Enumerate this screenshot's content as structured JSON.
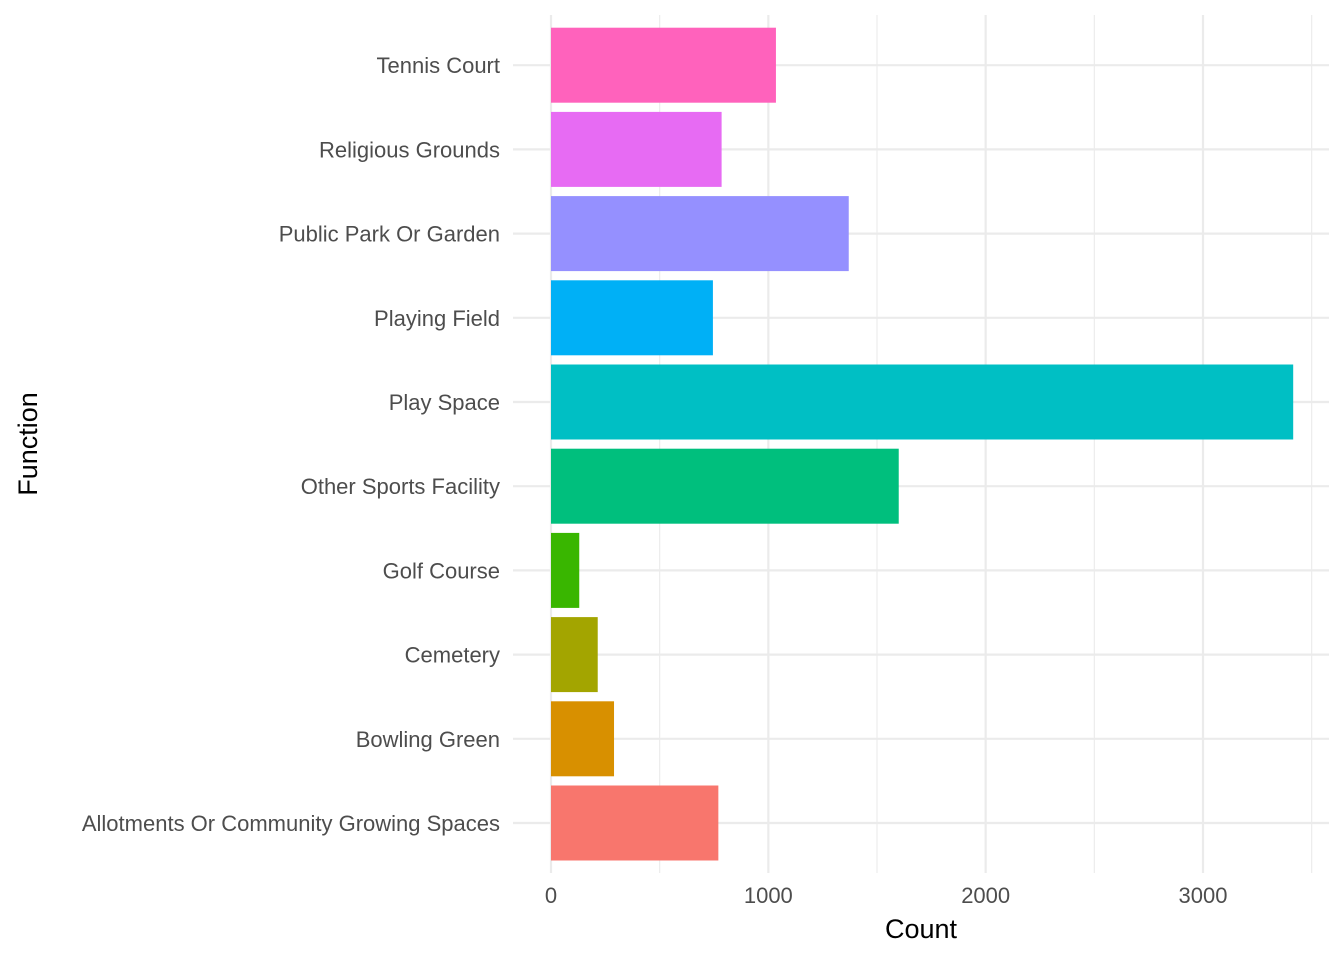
{
  "chart_data": {
    "type": "bar",
    "orientation": "horizontal",
    "categories": [
      "Allotments Or Community Growing Spaces",
      "Bowling Green",
      "Cemetery",
      "Golf Course",
      "Other Sports Facility",
      "Play Space",
      "Playing Field",
      "Public Park Or Garden",
      "Religious Grounds",
      "Tennis Court"
    ],
    "values": [
      770,
      290,
      215,
      130,
      1600,
      3415,
      745,
      1370,
      785,
      1035
    ],
    "colors": [
      "#F8766D",
      "#D89000",
      "#A3A500",
      "#39B600",
      "#00BF7D",
      "#00BFC4",
      "#00B0F6",
      "#9590FF",
      "#E76BF3",
      "#FF62BC"
    ],
    "xlabel": "Count",
    "ylabel": "Function",
    "xlim": [
      0,
      3500
    ],
    "xticks": [
      0,
      1000,
      2000,
      3000
    ],
    "xtick_labels": [
      "0",
      "1000",
      "2000",
      "3000"
    ],
    "grid": true,
    "legend": "none"
  }
}
